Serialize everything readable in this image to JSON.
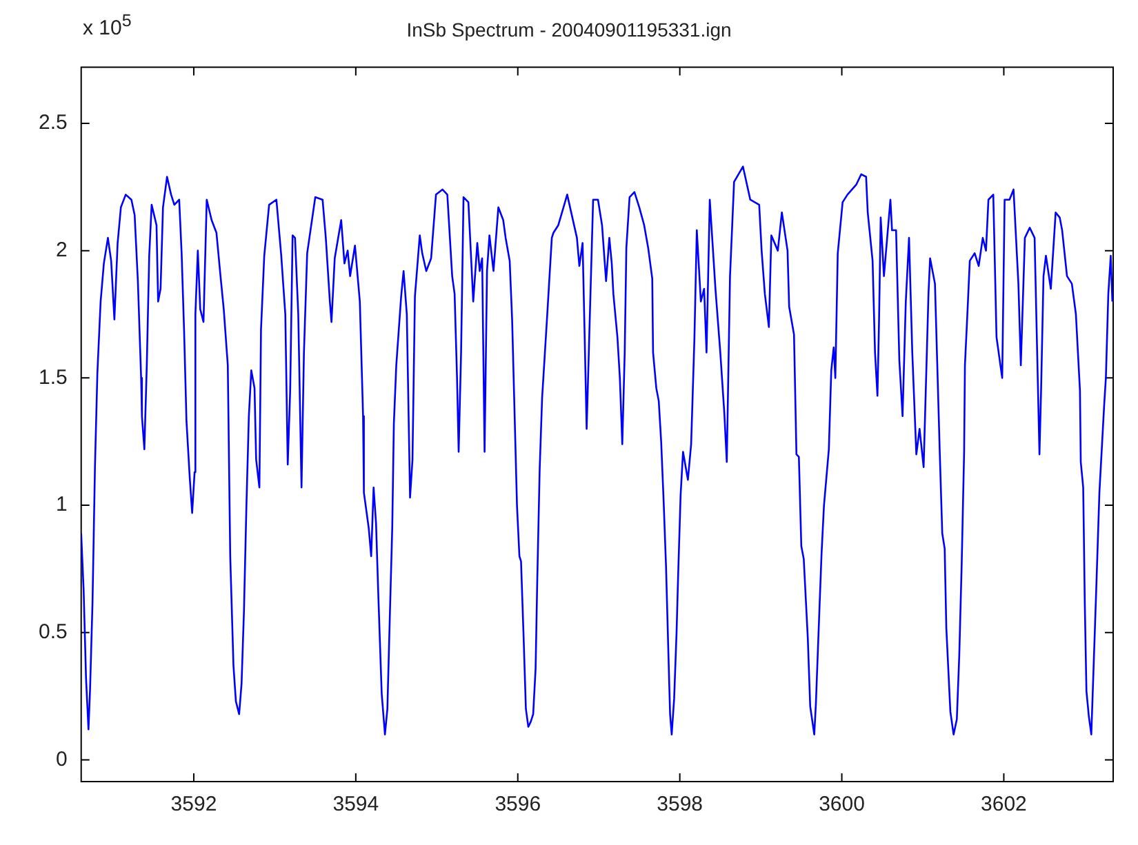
{
  "chart_data": {
    "type": "line",
    "title": "InSb Spectrum - 20040901195331.ign",
    "annotations": [
      "x 10$^{5}$"
    ],
    "x": [
      3590.61,
      3590.64,
      3590.67,
      3590.7,
      3590.72,
      3590.75,
      3590.78,
      3590.81,
      3590.85,
      3590.89,
      3590.94,
      3590.98,
      3591.02,
      3591.06,
      3591.1,
      3591.16,
      3591.23,
      3591.27,
      3591.31,
      3591.35,
      3591.36,
      3591.39,
      3591.42,
      3591.45,
      3591.48,
      3591.54,
      3591.56,
      3591.59,
      3591.62,
      3591.67,
      3591.72,
      3591.76,
      3591.82,
      3591.85,
      3591.88,
      3591.91,
      3591.95,
      3591.98,
      3592.01,
      3592.02,
      3592.05,
      3592.08,
      3592.12,
      3592.16,
      3592.22,
      3592.28,
      3592.33,
      3592.37,
      3592.42,
      3592.45,
      3592.49,
      3592.52,
      3592.56,
      3592.59,
      3592.62,
      3592.65,
      3592.68,
      3592.71,
      3592.75,
      3592.77,
      3592.81,
      3592.83,
      3592.87,
      3592.93,
      3593.02,
      3593.08,
      3593.13,
      3593.16,
      3593.19,
      3593.22,
      3593.25,
      3593.29,
      3593.33,
      3593.36,
      3593.4,
      3593.5,
      3593.59,
      3593.63,
      3593.68,
      3593.7,
      3593.74,
      3593.82,
      3593.86,
      3593.9,
      3593.93,
      3593.99,
      3594.05,
      3594.09,
      3594.1,
      3594.16,
      3594.19,
      3594.22,
      3594.25,
      3594.28,
      3594.32,
      3594.36,
      3594.39,
      3594.42,
      3594.45,
      3594.47,
      3594.5,
      3594.56,
      3594.59,
      3594.63,
      3594.67,
      3594.7,
      3594.73,
      3594.79,
      3594.82,
      3594.87,
      3594.93,
      3594.99,
      3595.07,
      3595.13,
      3595.19,
      3595.22,
      3595.25,
      3595.27,
      3595.3,
      3595.33,
      3595.39,
      3595.45,
      3595.5,
      3595.53,
      3595.56,
      3595.59,
      3595.62,
      3595.65,
      3595.7,
      3595.76,
      3595.82,
      3595.85,
      3595.9,
      3595.93,
      3595.99,
      3596.02,
      3596.04,
      3596.07,
      3596.1,
      3596.13,
      3596.16,
      3596.19,
      3596.22,
      3596.24,
      3596.27,
      3596.3,
      3596.36,
      3596.42,
      3596.44,
      3596.5,
      3596.61,
      3596.73,
      3596.76,
      3596.8,
      3596.83,
      3596.85,
      3596.89,
      3596.93,
      3596.99,
      3597.04,
      3597.09,
      3597.13,
      3597.16,
      3597.18,
      3597.23,
      3597.26,
      3597.29,
      3597.32,
      3597.34,
      3597.38,
      3597.44,
      3597.5,
      3597.56,
      3597.61,
      3597.66,
      3597.67,
      3597.71,
      3597.74,
      3597.77,
      3597.8,
      3597.83,
      3597.86,
      3597.88,
      3597.9,
      3597.93,
      3597.96,
      3597.98,
      3598.01,
      3598.04,
      3598.1,
      3598.14,
      3598.18,
      3598.21,
      3598.26,
      3598.3,
      3598.33,
      3598.37,
      3598.44,
      3598.5,
      3598.55,
      3598.58,
      3598.62,
      3598.67,
      3598.78,
      3598.87,
      3598.98,
      3599.01,
      3599.05,
      3599.1,
      3599.13,
      3599.21,
      3599.26,
      3599.33,
      3599.35,
      3599.41,
      3599.44,
      3599.47,
      3599.5,
      3599.53,
      3599.58,
      3599.61,
      3599.66,
      3599.68,
      3599.72,
      3599.75,
      3599.78,
      3599.84,
      3599.87,
      3599.9,
      3599.92,
      3599.95,
      3600.01,
      3600.07,
      3600.18,
      3600.24,
      3600.3,
      3600.32,
      3600.38,
      3600.41,
      3600.44,
      3600.46,
      3600.48,
      3600.52,
      3600.56,
      3600.6,
      3600.62,
      3600.67,
      3600.71,
      3600.75,
      3600.79,
      3600.83,
      3600.87,
      3600.92,
      3600.96,
      3601.01,
      3601.07,
      3601.09,
      3601.15,
      3601.21,
      3601.24,
      3601.27,
      3601.29,
      3601.34,
      3601.38,
      3601.42,
      3601.45,
      3601.48,
      3601.51,
      3601.52,
      3601.55,
      3601.58,
      3601.64,
      3601.69,
      3601.74,
      3601.78,
      3601.81,
      3601.87,
      3601.91,
      3601.98,
      3602.01,
      3602.07,
      3602.12,
      3602.18,
      3602.21,
      3602.26,
      3602.32,
      3602.38,
      3602.44,
      3602.46,
      3602.49,
      3602.52,
      3602.58,
      3602.64,
      3602.69,
      3602.72,
      3602.78,
      3602.84,
      3602.89,
      3602.94,
      3602.95,
      3602.98,
      3603.0,
      3603.02,
      3603.05,
      3603.08,
      3603.11,
      3603.14,
      3603.18,
      3603.24,
      3603.26,
      3603.29,
      3603.32,
      3603.34
    ],
    "series": [
      {
        "color": "#0000ff",
        "values": [
          0.89,
          0.67,
          0.32,
          0.12,
          0.28,
          0.62,
          1.15,
          1.52,
          1.8,
          1.95,
          2.05,
          1.96,
          1.73,
          2.03,
          2.17,
          2.22,
          2.2,
          2.14,
          1.88,
          1.5,
          1.35,
          1.22,
          1.55,
          1.98,
          2.18,
          2.1,
          1.8,
          1.85,
          2.17,
          2.29,
          2.22,
          2.18,
          2.2,
          1.99,
          1.69,
          1.33,
          1.11,
          0.97,
          1.13,
          1.75,
          2.0,
          1.77,
          1.72,
          2.2,
          2.12,
          2.07,
          1.9,
          1.77,
          1.55,
          0.8,
          0.37,
          0.23,
          0.18,
          0.3,
          0.59,
          1.0,
          1.35,
          1.53,
          1.46,
          1.18,
          1.07,
          1.69,
          1.98,
          2.18,
          2.2,
          1.98,
          1.75,
          1.16,
          1.45,
          2.06,
          2.05,
          1.75,
          1.07,
          1.6,
          1.99,
          2.21,
          2.2,
          2.05,
          1.8,
          1.72,
          1.97,
          2.12,
          1.95,
          2.0,
          1.9,
          2.02,
          1.8,
          1.35,
          1.05,
          0.91,
          0.8,
          1.07,
          0.93,
          0.63,
          0.26,
          0.1,
          0.2,
          0.56,
          0.91,
          1.32,
          1.55,
          1.82,
          1.92,
          1.75,
          1.03,
          1.18,
          1.82,
          2.06,
          1.99,
          1.92,
          1.97,
          2.22,
          2.24,
          2.22,
          1.9,
          1.83,
          1.5,
          1.21,
          1.6,
          2.21,
          2.19,
          1.8,
          2.03,
          1.92,
          1.97,
          1.21,
          1.92,
          2.06,
          1.92,
          2.17,
          2.12,
          2.05,
          1.96,
          1.73,
          1.0,
          0.8,
          0.78,
          0.5,
          0.2,
          0.13,
          0.15,
          0.18,
          0.36,
          0.7,
          1.14,
          1.42,
          1.73,
          2.05,
          2.07,
          2.1,
          2.22,
          2.05,
          1.94,
          2.03,
          1.6,
          1.3,
          1.75,
          2.2,
          2.2,
          2.1,
          1.88,
          2.05,
          1.95,
          1.83,
          1.66,
          1.5,
          1.24,
          1.6,
          2.01,
          2.21,
          2.23,
          2.17,
          2.1,
          2.01,
          1.89,
          1.6,
          1.46,
          1.41,
          1.25,
          1.02,
          0.76,
          0.41,
          0.18,
          0.1,
          0.24,
          0.5,
          0.73,
          1.04,
          1.21,
          1.1,
          1.24,
          1.65,
          2.08,
          1.8,
          1.85,
          1.6,
          2.2,
          1.85,
          1.6,
          1.36,
          1.17,
          1.9,
          2.27,
          2.33,
          2.2,
          2.18,
          2.0,
          1.83,
          1.7,
          2.06,
          2.0,
          2.15,
          2.0,
          1.78,
          1.67,
          1.2,
          1.19,
          0.84,
          0.79,
          0.48,
          0.21,
          0.1,
          0.22,
          0.56,
          0.81,
          1.0,
          1.22,
          1.53,
          1.62,
          1.5,
          1.99,
          2.19,
          2.22,
          2.26,
          2.3,
          2.29,
          2.15,
          1.96,
          1.6,
          1.43,
          1.73,
          2.13,
          1.9,
          2.05,
          2.2,
          2.08,
          2.08,
          1.57,
          1.35,
          1.8,
          2.05,
          1.6,
          1.2,
          1.3,
          1.15,
          1.83,
          1.97,
          1.87,
          1.2,
          0.89,
          0.83,
          0.52,
          0.19,
          0.1,
          0.16,
          0.41,
          0.77,
          1.21,
          1.55,
          1.75,
          1.96,
          1.99,
          1.94,
          2.05,
          2.0,
          2.2,
          2.22,
          1.66,
          1.5,
          2.2,
          2.2,
          2.24,
          1.87,
          1.55,
          2.05,
          2.09,
          2.05,
          1.2,
          1.45,
          1.9,
          1.98,
          1.85,
          2.15,
          2.13,
          2.08,
          1.9,
          1.87,
          1.75,
          1.45,
          1.17,
          1.07,
          0.61,
          0.27,
          0.17,
          0.1,
          0.38,
          0.66,
          1.05,
          1.4,
          1.5,
          1.83,
          1.98,
          1.8
        ]
      }
    ],
    "xlim": [
      3590.61,
      3603.35
    ],
    "ylim": [
      -0.085,
      2.72
    ],
    "xticks": [
      3592,
      3594,
      3596,
      3598,
      3600,
      3602
    ],
    "yticks": [
      0,
      0.5,
      1,
      1.5,
      2,
      2.5
    ],
    "grid": false,
    "legend": false,
    "marker": "none",
    "line_style": "solid"
  }
}
